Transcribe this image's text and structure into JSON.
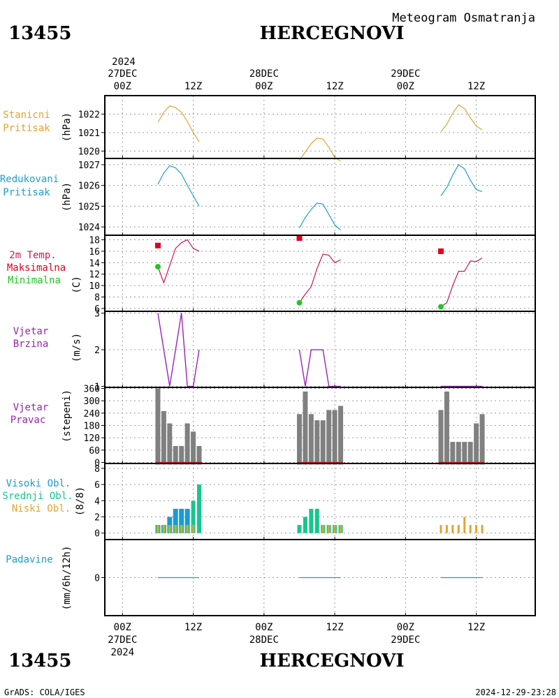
{
  "header": {
    "station_id": "13455",
    "station_name": "HERCEGNOVI",
    "subtitle": "Meteogram Osmatranja"
  },
  "footer": {
    "credit": "GrADS: COLA/IGES",
    "timestamp": "2024-12-29-23:28"
  },
  "time_axis": {
    "year": "2024",
    "ticks": [
      {
        "hour": 0,
        "label": "00Z",
        "date": "27DEC"
      },
      {
        "hour": 12,
        "label": "12Z"
      },
      {
        "hour": 24,
        "label": "00Z",
        "date": "28DEC"
      },
      {
        "hour": 36,
        "label": "12Z"
      },
      {
        "hour": 48,
        "label": "00Z",
        "date": "29DEC"
      },
      {
        "hour": 60,
        "label": "12Z"
      }
    ],
    "range_hours": [
      -3,
      70
    ]
  },
  "colors": {
    "station_pressure": "#e0a431",
    "reduced_pressure": "#1aa0c8",
    "temperature": "#c8185a",
    "tmax": "#e0001a",
    "tmin": "#22c522",
    "wind": "#9a22b4",
    "direction_bar": "#808080",
    "direction_base": "#d02020",
    "high_cloud": "#1a9ad2",
    "mid_cloud": "#14c88c",
    "low_cloud": "#e0a431",
    "precip": "#1aa0c8",
    "precip_label": "#1aa0c8"
  },
  "panels": {
    "station_pressure": {
      "label1": "Stanicni",
      "label2": "Pritisak",
      "unit": "(hPa)"
    },
    "reduced_pressure": {
      "label1": "Redukovani",
      "label2": "Pritisak",
      "unit": "(hPa)"
    },
    "temperature": {
      "label1": "2m Temp.",
      "label2": "Maksimalna",
      "label3": "Minimalna",
      "unit": "(C)"
    },
    "wind_speed": {
      "label1": "Vjetar",
      "label2": "Brzina",
      "unit": "(m/s)"
    },
    "wind_direction": {
      "label1": "Vjetar",
      "label2": "Pravac",
      "unit": "(stepeni)"
    },
    "clouds": {
      "label1": "Visoki Obl.",
      "label2": "Srednji Obl.",
      "label3": "Niski Obl.",
      "unit": "(8/8)"
    },
    "precipitation": {
      "label1": "Padavine",
      "unit": "(mm/6h/12h)"
    }
  },
  "chart_data": [
    {
      "type": "line",
      "id": "station_pressure",
      "ylabel": "(hPa)",
      "ylim": [
        1019.6,
        1023.0
      ],
      "yticks": [
        1020,
        1021,
        1022
      ],
      "series": [
        {
          "x": [
            6,
            7,
            8,
            9,
            10,
            11,
            12,
            13
          ],
          "y": [
            1021.55,
            1022.1,
            1022.45,
            1022.35,
            1022.1,
            1021.6,
            1021.0,
            1020.5
          ]
        },
        {
          "x": [
            30,
            31,
            32,
            33,
            34,
            35,
            36,
            37
          ],
          "y": [
            1019.5,
            1019.95,
            1020.4,
            1020.7,
            1020.65,
            1020.2,
            1019.65,
            1019.45
          ]
        },
        {
          "x": [
            54,
            55,
            56,
            57,
            58,
            59,
            60,
            61
          ],
          "y": [
            1021.05,
            1021.45,
            1022.05,
            1022.5,
            1022.3,
            1021.8,
            1021.35,
            1021.15
          ]
        }
      ]
    },
    {
      "type": "line",
      "id": "reduced_pressure",
      "ylabel": "(hPa)",
      "ylim": [
        1023.6,
        1027.3
      ],
      "yticks": [
        1024,
        1025,
        1026,
        1027
      ],
      "series": [
        {
          "x": [
            6,
            7,
            8,
            9,
            10,
            11,
            12,
            13
          ],
          "y": [
            1026.05,
            1026.6,
            1026.95,
            1026.85,
            1026.55,
            1026.0,
            1025.5,
            1025.0
          ]
        },
        {
          "x": [
            30,
            31,
            32,
            33,
            34,
            35,
            36,
            37
          ],
          "y": [
            1023.95,
            1024.45,
            1024.85,
            1025.15,
            1025.1,
            1024.6,
            1024.1,
            1023.85
          ]
        },
        {
          "x": [
            54,
            55,
            56,
            57,
            58,
            59,
            60,
            61
          ],
          "y": [
            1025.5,
            1025.9,
            1026.5,
            1027.0,
            1026.8,
            1026.25,
            1025.8,
            1025.7
          ]
        }
      ]
    },
    {
      "type": "line",
      "id": "temperature",
      "ylabel": "(C)",
      "ylim": [
        5.5,
        18.8
      ],
      "yticks": [
        6,
        8,
        10,
        12,
        14,
        16,
        18
      ],
      "series": [
        {
          "x": [
            6,
            7,
            8,
            9,
            10,
            11,
            12,
            13
          ],
          "y": [
            13.3,
            10.5,
            13.5,
            16.5,
            17.5,
            18.0,
            16.5,
            16.0
          ]
        },
        {
          "x": [
            30,
            31,
            32,
            33,
            34,
            35,
            36,
            37
          ],
          "y": [
            7.0,
            8.5,
            9.8,
            13.0,
            15.5,
            15.3,
            14.0,
            14.5
          ]
        },
        {
          "x": [
            54,
            55,
            56,
            57,
            58,
            59,
            60,
            61
          ],
          "y": [
            6.3,
            7.0,
            10.0,
            12.5,
            12.5,
            14.3,
            14.2,
            14.8
          ]
        }
      ],
      "tmax": [
        {
          "x": 6,
          "y": 17.0
        },
        {
          "x": 30,
          "y": 18.3
        },
        {
          "x": 54,
          "y": 16.0
        }
      ],
      "tmin": [
        {
          "x": 6,
          "y": 13.3
        },
        {
          "x": 30,
          "y": 7.0
        },
        {
          "x": 54,
          "y": 6.3
        }
      ]
    },
    {
      "type": "line",
      "id": "wind_speed",
      "ylabel": "(m/s)",
      "ylim": [
        0.97,
        3.05
      ],
      "yticks": [
        1,
        2,
        3
      ],
      "series": [
        {
          "x": [
            6,
            7,
            8,
            9,
            10,
            11,
            12,
            13
          ],
          "y": [
            3,
            2,
            1,
            2,
            3,
            1,
            1,
            2
          ]
        },
        {
          "x": [
            30,
            31,
            32,
            33,
            34,
            35,
            36,
            37
          ],
          "y": [
            2,
            1,
            2,
            2,
            2,
            1,
            1,
            1
          ]
        },
        {
          "x": [
            54,
            55,
            56,
            57,
            58,
            59,
            60,
            61
          ],
          "y": [
            1,
            1,
            1,
            1,
            1,
            1,
            1,
            1
          ]
        }
      ]
    },
    {
      "type": "bar",
      "id": "wind_direction",
      "ylabel": "(stepeni)",
      "ylim": [
        -5,
        365
      ],
      "yticks": [
        0,
        60,
        120,
        180,
        240,
        300,
        360
      ],
      "x": [
        6,
        7,
        8,
        9,
        10,
        11,
        12,
        13,
        30,
        31,
        32,
        33,
        34,
        35,
        36,
        37,
        54,
        55,
        56,
        57,
        58,
        59,
        60,
        61
      ],
      "values": [
        360,
        250,
        190,
        80,
        80,
        190,
        150,
        80,
        235,
        345,
        235,
        205,
        205,
        255,
        255,
        275,
        255,
        345,
        100,
        100,
        100,
        100,
        190,
        235
      ]
    },
    {
      "type": "bar",
      "id": "clouds",
      "ylabel": "(8/8)",
      "ylim": [
        -0.8,
        8.6
      ],
      "yticks": [
        0,
        2,
        4,
        6,
        8
      ],
      "x": [
        6,
        7,
        8,
        9,
        10,
        11,
        12,
        13,
        30,
        31,
        32,
        33,
        34,
        35,
        36,
        37,
        54,
        55,
        56,
        57,
        58,
        59,
        60,
        61
      ],
      "series": [
        {
          "name": "Visoki Obl.",
          "values": [
            1,
            1,
            2,
            3,
            3,
            3,
            0,
            0,
            0,
            0,
            0,
            0,
            0,
            0,
            0,
            0,
            0,
            0,
            0,
            0,
            0,
            0,
            0,
            0
          ]
        },
        {
          "name": "Srednji Obl.",
          "values": [
            1,
            1,
            1,
            1,
            1,
            1,
            4,
            6,
            1,
            2,
            3,
            3,
            1,
            1,
            1,
            1,
            0,
            0,
            0,
            0,
            0,
            0,
            0,
            0
          ]
        },
        {
          "name": "Niski Obl.",
          "values": [
            1,
            1,
            1,
            1,
            1,
            1,
            1,
            0,
            0,
            0,
            0,
            0,
            1,
            1,
            1,
            1,
            1,
            1,
            1,
            1,
            2,
            1,
            1,
            1
          ]
        }
      ]
    },
    {
      "type": "line",
      "id": "precipitation",
      "ylabel": "(mm/6h/12h)",
      "ylim": [
        -1,
        1
      ],
      "yticks": [
        0
      ],
      "series": [
        {
          "x": [
            6,
            7,
            8,
            9,
            10,
            11,
            12,
            13
          ],
          "y": [
            0,
            0,
            0,
            0,
            0,
            0,
            0,
            0
          ]
        },
        {
          "x": [
            30,
            31,
            32,
            33,
            34,
            35,
            36,
            37
          ],
          "y": [
            0,
            0,
            0,
            0,
            0,
            0,
            0,
            0
          ]
        },
        {
          "x": [
            54,
            55,
            56,
            57,
            58,
            59,
            60,
            61
          ],
          "y": [
            0,
            0,
            0,
            0,
            0,
            0,
            0,
            0
          ]
        }
      ]
    }
  ]
}
